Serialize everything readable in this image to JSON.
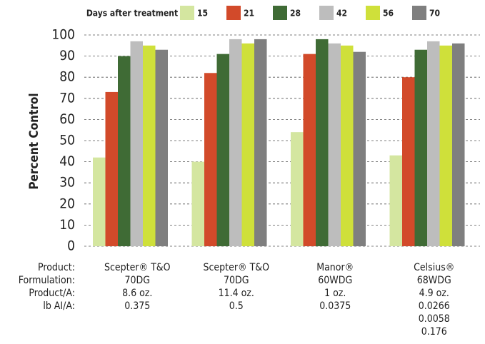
{
  "chart_data": {
    "type": "bar",
    "ylabel": "Percent Control",
    "legend_title": "Days after treatment",
    "legend_position": "top",
    "grid": true,
    "ylim": [
      0,
      100
    ],
    "yticks": [
      0,
      10,
      20,
      30,
      40,
      50,
      60,
      70,
      80,
      90,
      100
    ],
    "categories": [
      "Scepter® T&O",
      "Scepter® T&O",
      "Manor®",
      "Celsius®"
    ],
    "series": [
      {
        "name": "15",
        "color": "#d4e6a0",
        "values": [
          42,
          40,
          54,
          43
        ]
      },
      {
        "name": "21",
        "color": "#d24a2a",
        "values": [
          73,
          82,
          91,
          80
        ]
      },
      {
        "name": "28",
        "color": "#3f6b35",
        "values": [
          90,
          91,
          98,
          93
        ]
      },
      {
        "name": "42",
        "color": "#bdbdbd",
        "values": [
          97,
          98,
          96,
          97
        ]
      },
      {
        "name": "56",
        "color": "#cfe03a",
        "values": [
          95,
          96,
          95,
          95
        ]
      },
      {
        "name": "70",
        "color": "#7f7f7f",
        "values": [
          93,
          98,
          92,
          96
        ]
      }
    ],
    "table": {
      "row_labels": [
        "Product:",
        "Formulation:",
        "Product/A:",
        "lb AI/A:"
      ],
      "columns": [
        [
          "70DG",
          "8.6 oz.",
          "0.375"
        ],
        [
          "70DG",
          "11.4 oz.",
          "0.5"
        ],
        [
          "60WDG",
          "1 oz.",
          "0.0375"
        ],
        [
          "68WDG",
          "4.9 oz.",
          "0.0266",
          "0.0058",
          "0.176"
        ]
      ]
    }
  }
}
